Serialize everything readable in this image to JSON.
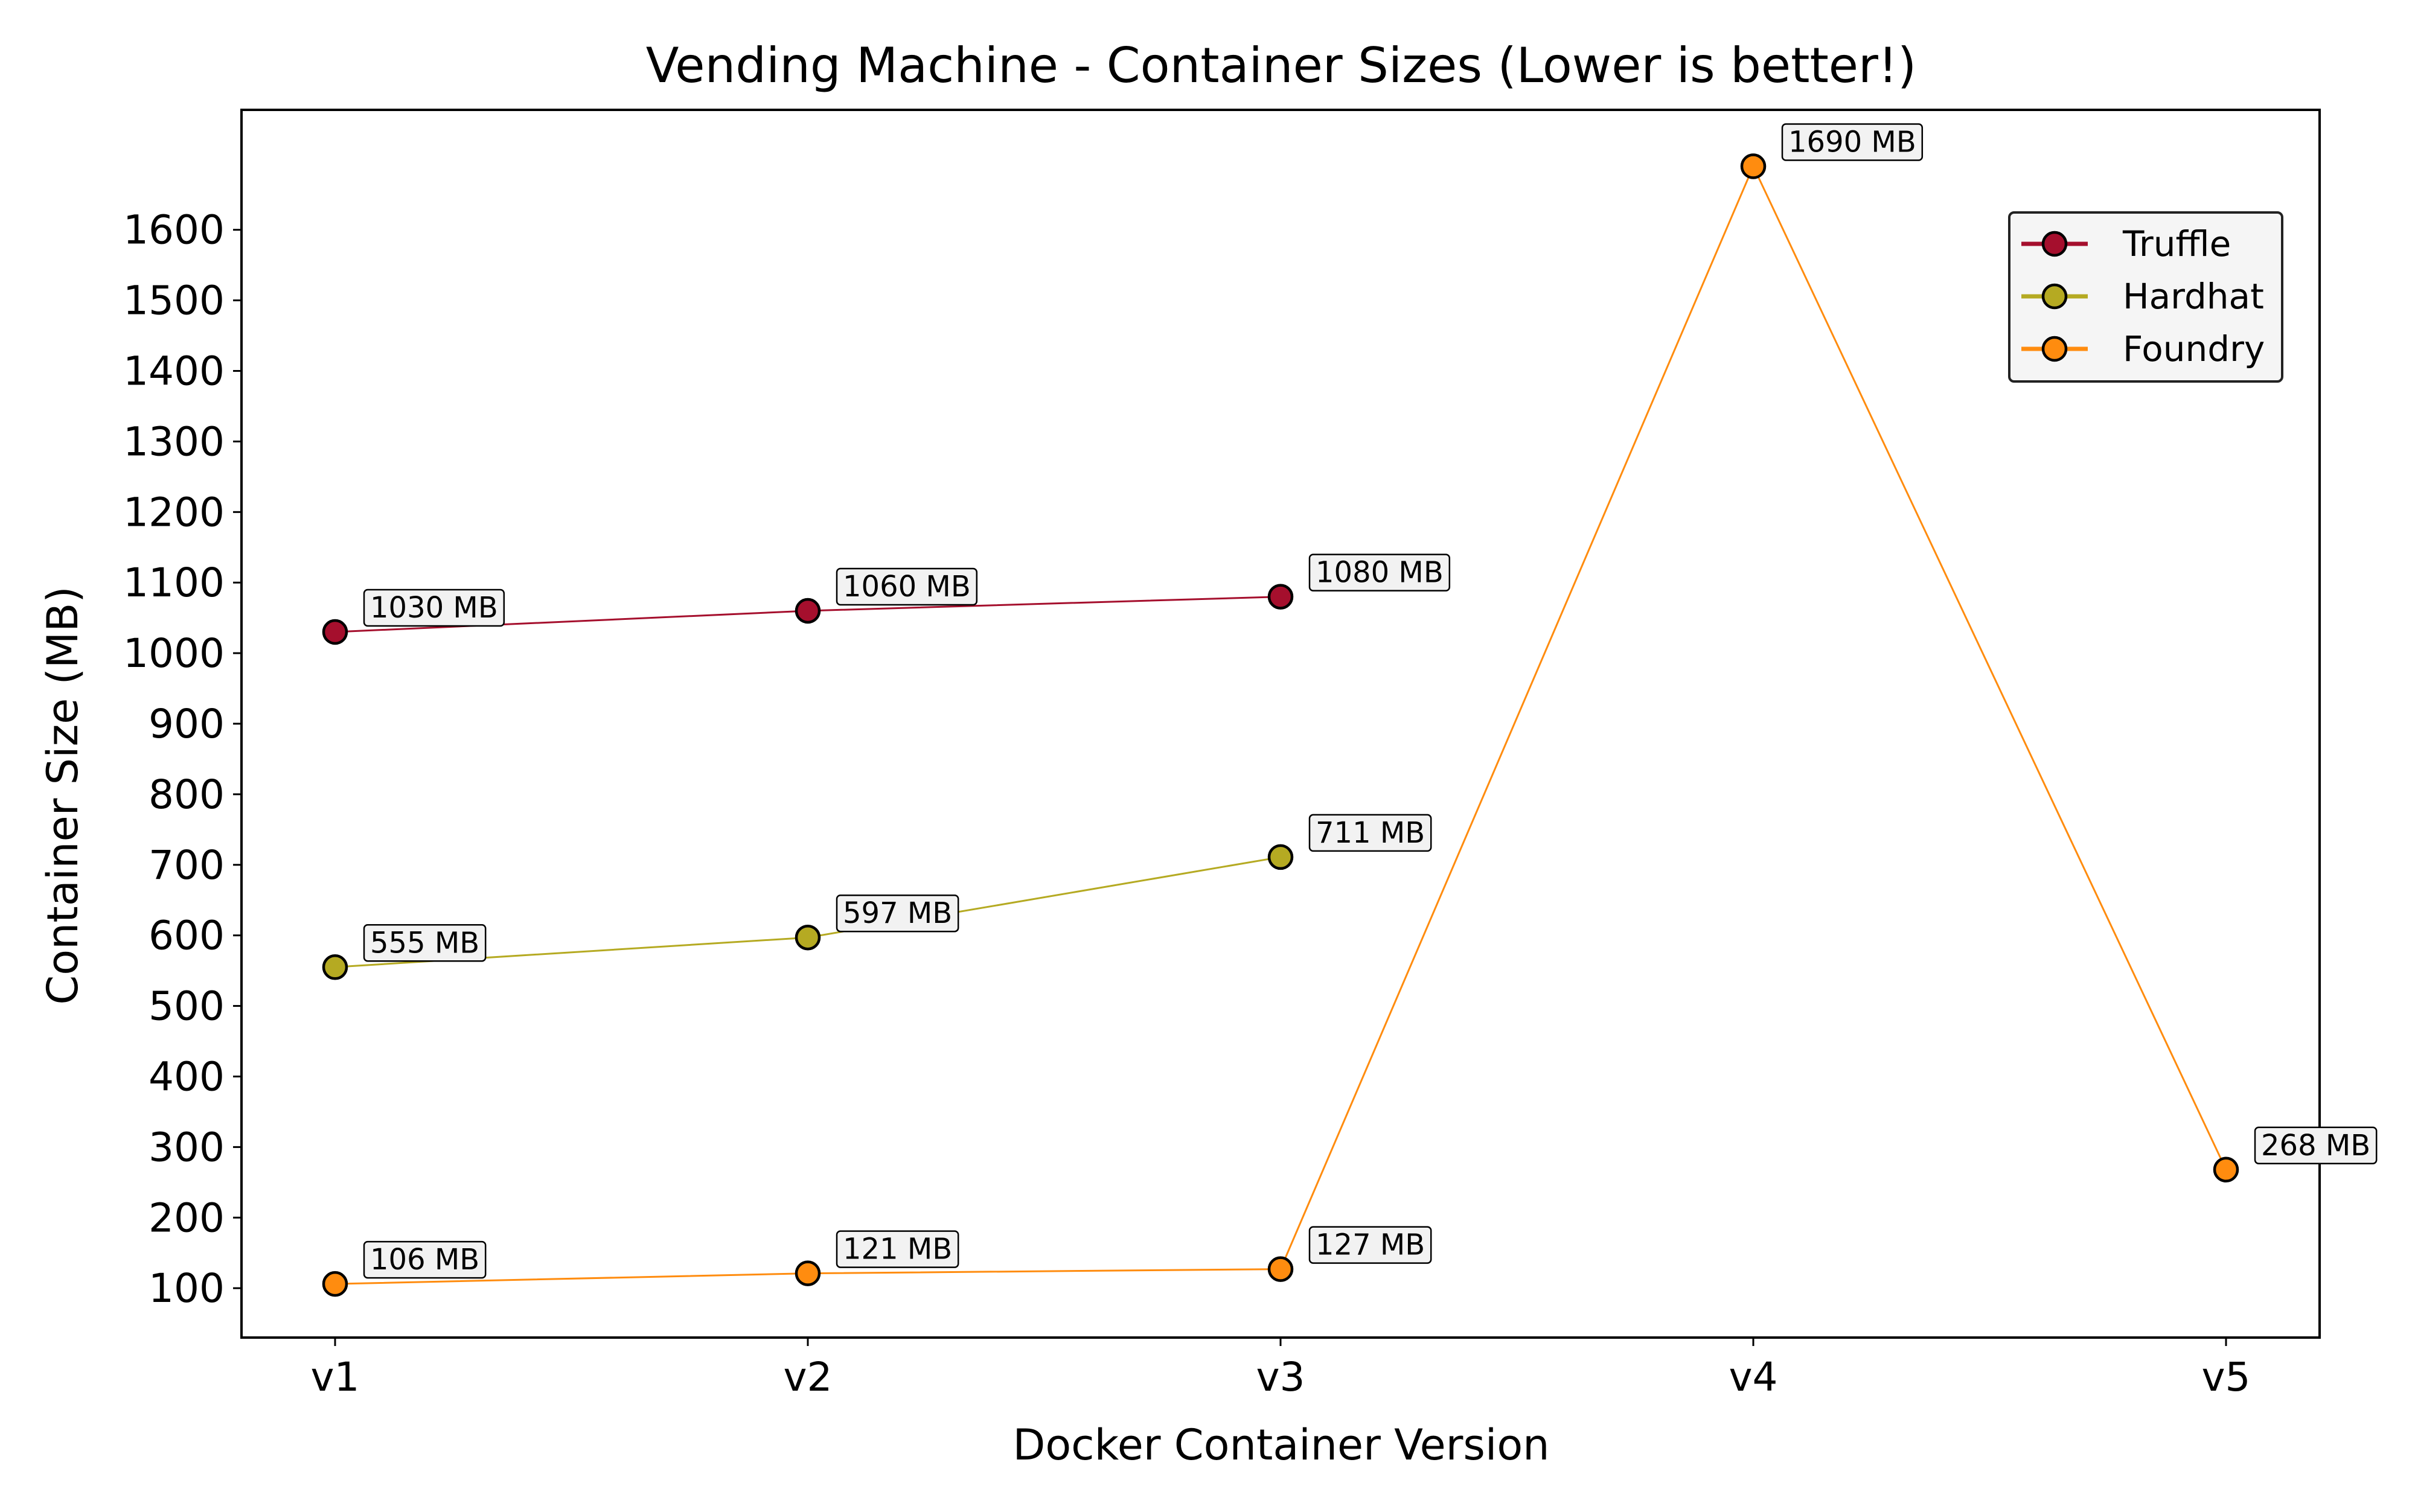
{
  "chart_data": {
    "type": "line",
    "title": "Vending Machine - Container Sizes (Lower is better!)",
    "xlabel": "Docker Container Version",
    "ylabel": "Container Size (MB)",
    "categories": [
      "v1",
      "v2",
      "v3",
      "v4",
      "v5"
    ],
    "yticks": [
      100,
      200,
      300,
      400,
      500,
      600,
      700,
      800,
      900,
      1000,
      1100,
      1200,
      1300,
      1400,
      1500,
      1600
    ],
    "ylim": [
      30,
      1770
    ],
    "grid": false,
    "legend_position": "upper right",
    "label_suffix": " MB",
    "series": [
      {
        "name": "Truffle",
        "color": "#a50f2d",
        "values": [
          1030,
          1060,
          1080,
          null,
          null
        ]
      },
      {
        "name": "Hardhat",
        "color": "#b5aa22",
        "values": [
          555,
          597,
          711,
          null,
          null
        ]
      },
      {
        "name": "Foundry",
        "color": "#ff8c0f",
        "values": [
          106,
          121,
          127,
          1690,
          268
        ]
      }
    ]
  }
}
